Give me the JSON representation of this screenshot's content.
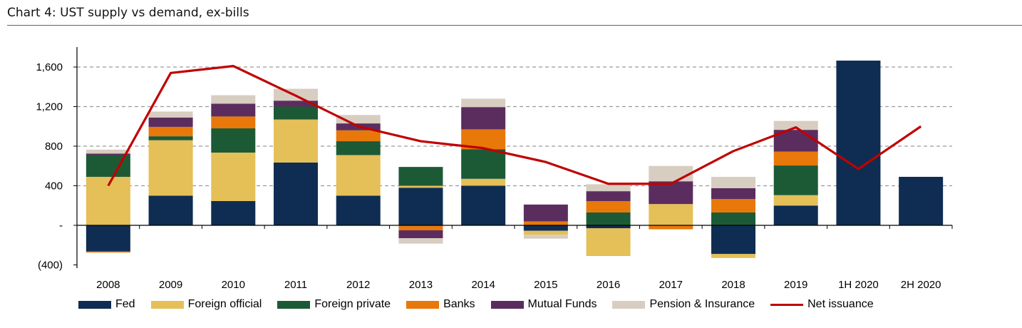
{
  "chart_data": {
    "type": "bar",
    "title": "Chart 4: UST supply vs demand, ex-bills",
    "categories": [
      "2008",
      "2009",
      "2010",
      "2011",
      "2012",
      "2013",
      "2014",
      "2015",
      "2016",
      "2017",
      "2018",
      "2019",
      "1H 2020",
      "2H 2020"
    ],
    "ylim": [
      -400,
      1800
    ],
    "yticks": [
      {
        "value": 1600,
        "label": "1,600"
      },
      {
        "value": 1200,
        "label": "1,200"
      },
      {
        "value": 800,
        "label": "800"
      },
      {
        "value": 400,
        "label": "400"
      },
      {
        "value": 0,
        "label": "-"
      },
      {
        "value": -400,
        "label": "(400)"
      }
    ],
    "grid": true,
    "legend_position": "bottom",
    "series": [
      {
        "name": "Fed",
        "color": "#0f2d52",
        "values": [
          -265,
          300,
          245,
          635,
          300,
          380,
          400,
          -55,
          -30,
          0,
          -290,
          200,
          1665,
          490
        ]
      },
      {
        "name": "Foreign official",
        "color": "#e5bf57",
        "values": [
          490,
          560,
          490,
          435,
          410,
          20,
          70,
          -40,
          -280,
          215,
          -40,
          105,
          0,
          0
        ]
      },
      {
        "name": "Foreign private",
        "color": "#1c5a36",
        "values": [
          220,
          40,
          245,
          130,
          140,
          190,
          300,
          0,
          130,
          0,
          130,
          300,
          0,
          0
        ]
      },
      {
        "name": "Banks",
        "color": "#e8780a",
        "values": [
          -10,
          95,
          120,
          0,
          110,
          -50,
          200,
          40,
          115,
          -40,
          135,
          140,
          0,
          0
        ]
      },
      {
        "name": "Mutual Funds",
        "color": "#5b2d5f",
        "values": [
          15,
          95,
          130,
          60,
          70,
          -80,
          225,
          170,
          100,
          230,
          110,
          220,
          0,
          0
        ]
      },
      {
        "name": "Pension & Insurance",
        "color": "#d8cdc1",
        "values": [
          40,
          60,
          85,
          120,
          85,
          -55,
          85,
          -40,
          70,
          155,
          115,
          90,
          0,
          0
        ]
      }
    ],
    "line_series": {
      "name": "Net issuance",
      "color": "#c00000",
      "values": [
        400,
        1540,
        1610,
        1310,
        1000,
        850,
        780,
        640,
        420,
        420,
        750,
        990,
        570,
        1000
      ]
    }
  }
}
